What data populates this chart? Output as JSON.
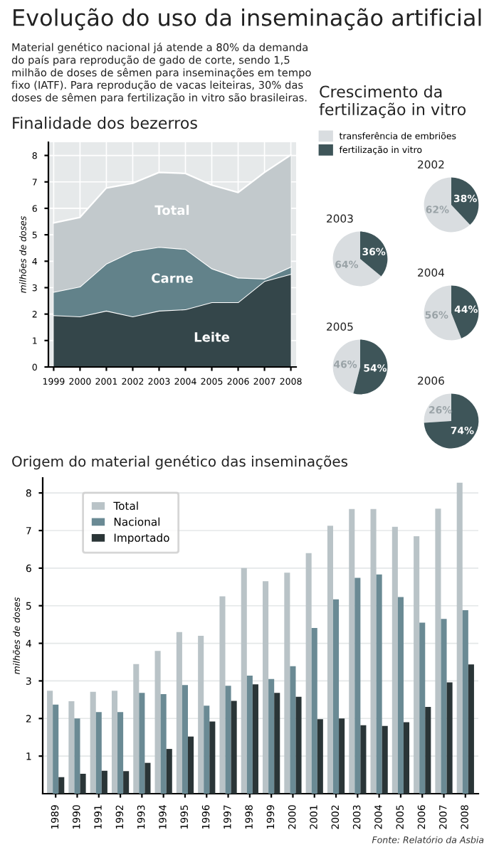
{
  "chart_data": [
    {
      "type": "other",
      "title": "Evolução do uso da inseminação artificial",
      "annotations": [
        "Material genético nacional já atende a 80% da demanda\ndo país para reprodução de gado de corte, sendo 1,5\nmilhão de doses de sêmen para inseminações em tempo\nfixo (IATF). Para reprodução de vacas leiteiras, 30% das\ndoses de sêmen para fertilização in vitro são brasileiras."
      ]
    },
    {
      "type": "area",
      "title": "Finalidade dos bezerros",
      "ylabel": "milhões de doses",
      "stacked": true,
      "legend": false,
      "grid": true,
      "categories": [
        "1999",
        "2000",
        "2001",
        "2002",
        "2003",
        "2004",
        "2005",
        "2006",
        "2007",
        "2008"
      ],
      "ylim": [
        0,
        8.5
      ],
      "yticks": [
        0,
        1,
        2,
        3,
        4,
        5,
        6,
        7,
        8
      ],
      "series": [
        {
          "name": "Leite",
          "color": "#34464a",
          "values": [
            1.96,
            1.91,
            2.13,
            1.91,
            2.13,
            2.18,
            2.45,
            2.45,
            3.25,
            3.52
          ]
        },
        {
          "name": "Carne",
          "color": "#62828a",
          "values": [
            0.88,
            1.13,
            1.78,
            2.47,
            2.41,
            2.28,
            1.28,
            0.93,
            0.09,
            0.27
          ]
        },
        {
          "name": "Total",
          "color": "#c2c9cc",
          "values": [
            2.61,
            2.62,
            2.86,
            2.57,
            2.82,
            2.86,
            3.15,
            3.22,
            4.02,
            4.23
          ]
        }
      ]
    },
    {
      "type": "other",
      "title": "Crescimento da fertilização in vitro"
    },
    {
      "type": "pie",
      "title": "2002",
      "legend": "left",
      "categories": [
        "transferência de embriões",
        "fertilização in vitro"
      ],
      "values": [
        62,
        38
      ],
      "colors": [
        "#d9dde0",
        "#3e5559"
      ],
      "value_labels": [
        "62%",
        "38%"
      ]
    },
    {
      "type": "pie",
      "title": "2003",
      "categories": [
        null,
        null
      ],
      "values": [
        64,
        36
      ],
      "colors": [
        "#d9dde0",
        "#3e5559"
      ],
      "value_labels": [
        "64%",
        "36%"
      ]
    },
    {
      "type": "pie",
      "title": "2004",
      "categories": [
        null,
        null
      ],
      "values": [
        56,
        44
      ],
      "colors": [
        "#d9dde0",
        "#3e5559"
      ],
      "value_labels": [
        "56%",
        "44%"
      ]
    },
    {
      "type": "pie",
      "title": "2005",
      "categories": [
        null,
        null
      ],
      "values": [
        46,
        54
      ],
      "colors": [
        "#d9dde0",
        "#3e5559"
      ],
      "value_labels": [
        "46%",
        "54%"
      ]
    },
    {
      "type": "pie",
      "title": "2006",
      "categories": [
        null,
        null
      ],
      "values": [
        26,
        74
      ],
      "colors": [
        "#d9dde0",
        "#3e5559"
      ],
      "value_labels": [
        "26%",
        "74%"
      ]
    },
    {
      "type": "bar",
      "title": "Origem do material genético das inseminações",
      "ylabel": "milhões de doses",
      "legend": "top left",
      "grid": "y",
      "categories": [
        "1989",
        "1990",
        "1991",
        "1992",
        "1993",
        "1994",
        "1995",
        "1996",
        "1997",
        "1998",
        "1999",
        "2000",
        "2001",
        "2002",
        "2003",
        "2004",
        "2005",
        "2006",
        "2007",
        "2008"
      ],
      "ylim": [
        0,
        8.4
      ],
      "yticks": [
        1,
        2,
        3,
        4,
        5,
        6,
        7,
        8
      ],
      "annotations": [
        "Fonte: Relatório da Asbia"
      ],
      "series": [
        {
          "name": "Total",
          "color": "#b9c3c7",
          "values": [
            2.74,
            2.46,
            2.71,
            2.74,
            3.45,
            3.8,
            4.3,
            4.2,
            5.25,
            6.0,
            5.65,
            5.88,
            6.4,
            7.13,
            7.57,
            7.57,
            7.1,
            6.85,
            7.58,
            8.27
          ]
        },
        {
          "name": "Nacional",
          "color": "#6a8a94",
          "values": [
            2.37,
            2.0,
            2.17,
            2.17,
            2.68,
            2.65,
            2.89,
            2.34,
            2.87,
            3.14,
            3.05,
            3.39,
            4.41,
            5.17,
            5.74,
            5.83,
            5.23,
            4.55,
            4.65,
            4.88
          ]
        },
        {
          "name": "Importado",
          "color": "#2a3537",
          "values": [
            0.44,
            0.53,
            0.61,
            0.6,
            0.82,
            1.19,
            1.52,
            1.92,
            2.47,
            2.91,
            2.68,
            2.58,
            1.98,
            2.0,
            1.82,
            1.8,
            1.9,
            2.31,
            2.96,
            3.44
          ]
        }
      ]
    }
  ]
}
